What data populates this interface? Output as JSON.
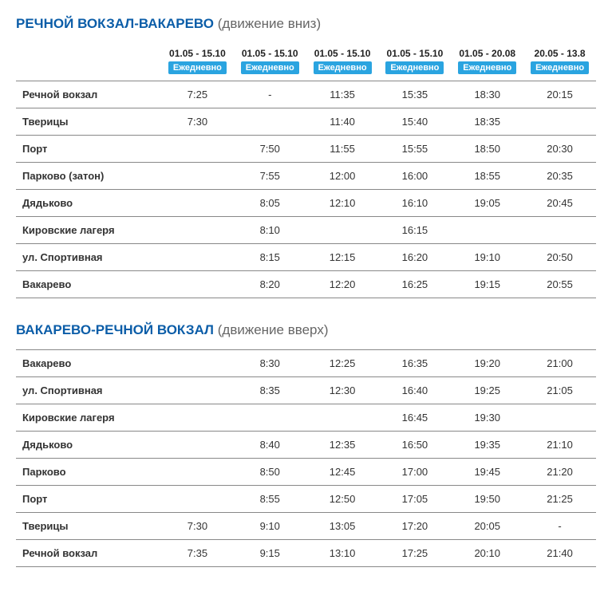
{
  "colors": {
    "route_title": "#0b5da8",
    "badge_bg": "#2aa4e0",
    "badge_text": "#ffffff",
    "border": "#888888",
    "text": "#333333"
  },
  "blocks": [
    {
      "route": "РЕЧНОЙ ВОКЗАЛ-ВАКАРЕВО",
      "direction": "(движение вниз)",
      "columns": [
        {
          "dates": "01.05 - 15.10",
          "freq": "Ежедневно"
        },
        {
          "dates": "01.05 - 15.10",
          "freq": "Ежедневно"
        },
        {
          "dates": "01.05 - 15.10",
          "freq": "Ежедневно"
        },
        {
          "dates": "01.05 - 15.10",
          "freq": "Ежедневно"
        },
        {
          "dates": "01.05 - 20.08",
          "freq": "Ежедневно"
        },
        {
          "dates": "20.05 - 13.8",
          "freq": "Ежедневно"
        }
      ],
      "rows": [
        {
          "stop": "Речной вокзал",
          "times": [
            "7:25",
            "-",
            "11:35",
            "15:35",
            "18:30",
            "20:15"
          ]
        },
        {
          "stop": "Тверицы",
          "times": [
            "7:30",
            "",
            "11:40",
            "15:40",
            "18:35",
            ""
          ]
        },
        {
          "stop": "Порт",
          "times": [
            "",
            "7:50",
            "11:55",
            "15:55",
            "18:50",
            "20:30"
          ]
        },
        {
          "stop": "Парково (затон)",
          "times": [
            "",
            "7:55",
            "12:00",
            "16:00",
            "18:55",
            "20:35"
          ]
        },
        {
          "stop": "Дядьково",
          "times": [
            "",
            "8:05",
            "12:10",
            "16:10",
            "19:05",
            "20:45"
          ]
        },
        {
          "stop": "Кировские лагеря",
          "times": [
            "",
            "8:10",
            "",
            "16:15",
            "",
            ""
          ]
        },
        {
          "stop": "ул. Спортивная",
          "times": [
            "",
            "8:15",
            "12:15",
            "16:20",
            "19:10",
            "20:50"
          ]
        },
        {
          "stop": "Вакарево",
          "times": [
            "",
            "8:20",
            "12:20",
            "16:25",
            "19:15",
            "20:55"
          ]
        }
      ]
    },
    {
      "route": "ВАКАРЕВО-РЕЧНОЙ ВОКЗАЛ",
      "direction": "(движение вверх)",
      "columns": [
        {
          "dates": "",
          "freq": ""
        },
        {
          "dates": "",
          "freq": ""
        },
        {
          "dates": "",
          "freq": ""
        },
        {
          "dates": "",
          "freq": ""
        },
        {
          "dates": "",
          "freq": ""
        },
        {
          "dates": "",
          "freq": ""
        }
      ],
      "rows": [
        {
          "stop": "Вакарево",
          "times": [
            "",
            "8:30",
            "12:25",
            "16:35",
            "19:20",
            "21:00"
          ]
        },
        {
          "stop": "ул. Спортивная",
          "times": [
            "",
            "8:35",
            "12:30",
            "16:40",
            "19:25",
            "21:05"
          ]
        },
        {
          "stop": "Кировские лагеря",
          "times": [
            "",
            "",
            "",
            "16:45",
            "19:30",
            ""
          ]
        },
        {
          "stop": "Дядьково",
          "times": [
            "",
            "8:40",
            "12:35",
            "16:50",
            "19:35",
            "21:10"
          ]
        },
        {
          "stop": "Парково",
          "times": [
            "",
            "8:50",
            "12:45",
            "17:00",
            "19:45",
            "21:20"
          ]
        },
        {
          "stop": "Порт",
          "times": [
            "",
            "8:55",
            "12:50",
            "17:05",
            "19:50",
            "21:25"
          ]
        },
        {
          "stop": "Тверицы",
          "times": [
            "7:30",
            "9:10",
            "13:05",
            "17:20",
            "20:05",
            "-"
          ]
        },
        {
          "stop": "Речной вокзал",
          "times": [
            "7:35",
            "9:15",
            "13:10",
            "17:25",
            "20:10",
            "21:40"
          ]
        }
      ]
    }
  ]
}
